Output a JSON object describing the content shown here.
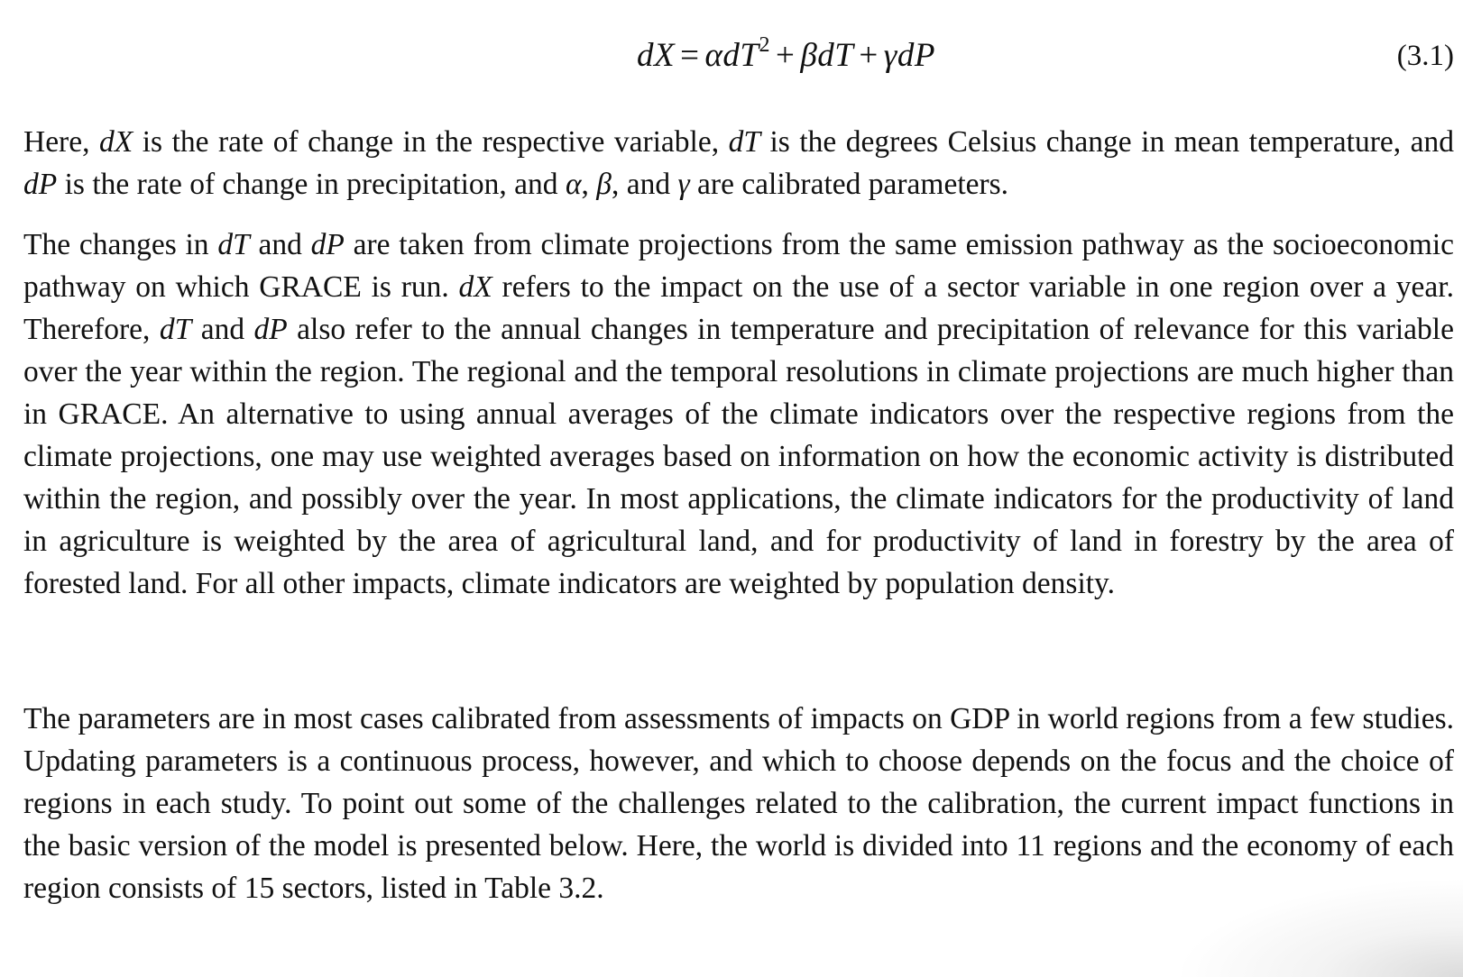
{
  "equation": {
    "lhs": "dX",
    "equals": "=",
    "term1": "αdT",
    "term1_exponent": "2",
    "plus1": "+",
    "term2": "βdT",
    "plus2": "+",
    "term3": "γdP",
    "number": "(3.1)"
  },
  "paragraphs": [
    {
      "segments": [
        {
          "text": "Here, ",
          "italic": false
        },
        {
          "text": "dX",
          "italic": true
        },
        {
          "text": " is the rate of change in the respective variable, ",
          "italic": false
        },
        {
          "text": "dT",
          "italic": true
        },
        {
          "text": " is the degrees Celsius change in mean temperature, and ",
          "italic": false
        },
        {
          "text": "dP",
          "italic": true
        },
        {
          "text": " is the rate of change in precipitation, and ",
          "italic": false
        },
        {
          "text": "α",
          "italic": true
        },
        {
          "text": ", ",
          "italic": false
        },
        {
          "text": "β",
          "italic": true
        },
        {
          "text": ", and ",
          "italic": false
        },
        {
          "text": "γ",
          "italic": true
        },
        {
          "text": " are calibrated parameters.",
          "italic": false
        }
      ]
    },
    {
      "segments": [
        {
          "text": "The changes in ",
          "italic": false
        },
        {
          "text": "dT",
          "italic": true
        },
        {
          "text": " and ",
          "italic": false
        },
        {
          "text": "dP",
          "italic": true
        },
        {
          "text": " are taken from climate projections from the same emission pathway as the socioeconomic pathway on which GRACE is run. ",
          "italic": false
        },
        {
          "text": "dX",
          "italic": true
        },
        {
          "text": " refers to the impact on the use of a sector variable in one region over a year. Therefore, ",
          "italic": false
        },
        {
          "text": "dT",
          "italic": true
        },
        {
          "text": " and ",
          "italic": false
        },
        {
          "text": "dP",
          "italic": true
        },
        {
          "text": " also refer to the annual changes in temperature and precipitation of relevance for this variable over the year within the region. The regional and the temporal resolutions in climate projections are much higher than in GRACE. An alternative to using annual averages of the climate indicators over the respective regions from the climate projections, one may use weighted averages based on information on how the economic activity is distributed within the region, and possibly over the year. In most applications, the climate indicators for the productivity of land in agriculture is weighted by the area of agricultural land, and for productivity of land in forestry by the area of forested land. For all other impacts, climate indicators are weighted by population density.",
          "italic": false
        }
      ]
    },
    {
      "segments": [
        {
          "text": "The parameters are in most cases calibrated from assessments of impacts on GDP in world regions from a few studies. Updating parameters is a continuous process, however, and which to choose depends on the focus and the choice of regions in each study. To point out some of the challenges related to the calibration, the current impact functions in the basic version of the model is presented below. Here, the world is divided into 11 regions and the economy of each region consists of 15 sectors, listed in Table 3.2.",
          "italic": false
        }
      ]
    }
  ]
}
